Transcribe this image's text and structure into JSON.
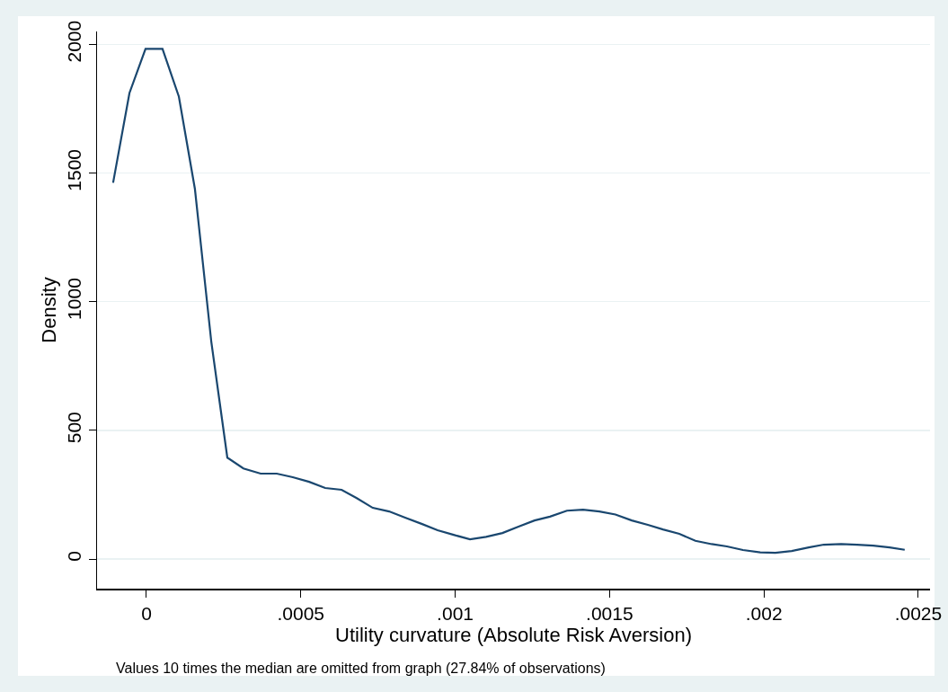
{
  "chart_data": {
    "type": "line",
    "xlabel": "Utility curvature (Absolute Risk Aversion)",
    "ylabel": "Density",
    "annotations": [
      "Values 10 times the median are omitted from graph (27.84% of observations)"
    ],
    "x": [
      -0.000108,
      -5.5e-05,
      -3e-06,
      5.2e-05,
      0.000105,
      0.000157,
      0.00021,
      0.000262,
      0.000314,
      0.00037,
      0.000422,
      0.000474,
      0.000527,
      0.000579,
      0.000632,
      0.000681,
      0.000733,
      0.000786,
      0.000838,
      0.000893,
      0.000943,
      0.000995,
      0.001048,
      0.0011,
      0.001153,
      0.001205,
      0.001257,
      0.001307,
      0.001362,
      0.001414,
      0.001467,
      0.001519,
      0.001572,
      0.001624,
      0.001673,
      0.001726,
      0.001778,
      0.001831,
      0.00188,
      0.001932,
      0.001988,
      0.002037,
      0.00209,
      0.002145,
      0.002194,
      0.00225,
      0.002302,
      0.002354,
      0.002407,
      0.002456
    ],
    "series": [
      {
        "color": "#1a476f",
        "values": [
          1462,
          1811,
          1982,
          1982,
          1797,
          1438,
          845,
          394,
          352,
          332,
          332,
          318,
          300,
          276,
          269,
          237,
          199,
          185,
          161,
          136,
          112,
          94,
          77,
          86,
          101,
          126,
          150,
          165,
          188,
          192,
          185,
          173,
          150,
          133,
          115,
          98,
          71,
          58,
          49,
          35,
          26,
          24,
          31,
          45,
          56,
          58,
          56,
          52,
          45,
          36
        ]
      }
    ],
    "xlim": [
      -0.00016,
      0.002538
    ],
    "ylim": [
      -115,
      2050
    ],
    "xticks": [
      0,
      {
        "value": 0.0005,
        "label": ".0005"
      },
      {
        "value": 0.001,
        "label": ".001"
      },
      {
        "value": 0.0015,
        "label": ".0015"
      },
      {
        "value": 0.002,
        "label": ".002"
      },
      {
        "value": 0.0025,
        "label": ".0025"
      }
    ],
    "yticks": [
      0,
      500,
      1000,
      1500,
      2000
    ],
    "grid": "y",
    "marker": "none",
    "line_style": "solid"
  }
}
